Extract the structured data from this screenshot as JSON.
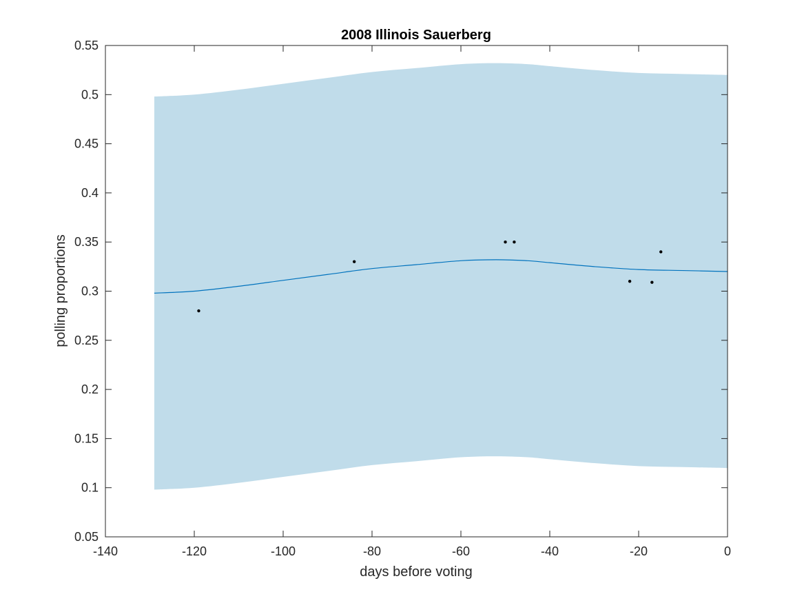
{
  "chart_data": {
    "type": "line",
    "title": "2008 Illinois Sauerberg",
    "xlabel": "days before voting",
    "ylabel": "polling proportions",
    "xlim": [
      -140,
      0
    ],
    "ylim": [
      0.05,
      0.55
    ],
    "xticks": [
      -140,
      -120,
      -100,
      -80,
      -60,
      -40,
      -20,
      0
    ],
    "xtick_labels": [
      "-140",
      "-120",
      "-100",
      "-80",
      "-60",
      "-40",
      "-20",
      "0"
    ],
    "yticks": [
      0.05,
      0.1,
      0.15,
      0.2,
      0.25,
      0.3,
      0.35,
      0.4,
      0.45,
      0.5,
      0.55
    ],
    "ytick_labels": [
      "0.05",
      "0.1",
      "0.15",
      "0.2",
      "0.25",
      "0.3",
      "0.35",
      "0.4",
      "0.45",
      "0.5",
      "0.55"
    ],
    "grid": false,
    "colors": {
      "band": "#c0dcea",
      "line": "#0072bd",
      "points": "#000000",
      "axes": "#262626"
    },
    "trend": {
      "x": [
        -129,
        -120,
        -110,
        -100,
        -90,
        -80,
        -70,
        -60,
        -52,
        -45,
        -40,
        -30,
        -20,
        -10,
        0
      ],
      "y": [
        0.298,
        0.3,
        0.305,
        0.311,
        0.317,
        0.323,
        0.327,
        0.331,
        0.332,
        0.331,
        0.329,
        0.325,
        0.322,
        0.321,
        0.32
      ]
    },
    "band": {
      "x": [
        -129,
        -120,
        -110,
        -100,
        -90,
        -80,
        -70,
        -60,
        -52,
        -45,
        -40,
        -30,
        -20,
        -10,
        0
      ],
      "upper": [
        0.498,
        0.5,
        0.505,
        0.511,
        0.517,
        0.523,
        0.527,
        0.531,
        0.532,
        0.531,
        0.529,
        0.525,
        0.522,
        0.521,
        0.52
      ],
      "lower": [
        0.098,
        0.1,
        0.105,
        0.111,
        0.117,
        0.123,
        0.127,
        0.131,
        0.132,
        0.131,
        0.129,
        0.125,
        0.122,
        0.121,
        0.12
      ]
    },
    "polls": {
      "x": [
        -119,
        -84,
        -50,
        -48,
        -22,
        -17,
        -15
      ],
      "y": [
        0.28,
        0.33,
        0.35,
        0.35,
        0.31,
        0.309,
        0.34
      ]
    }
  }
}
